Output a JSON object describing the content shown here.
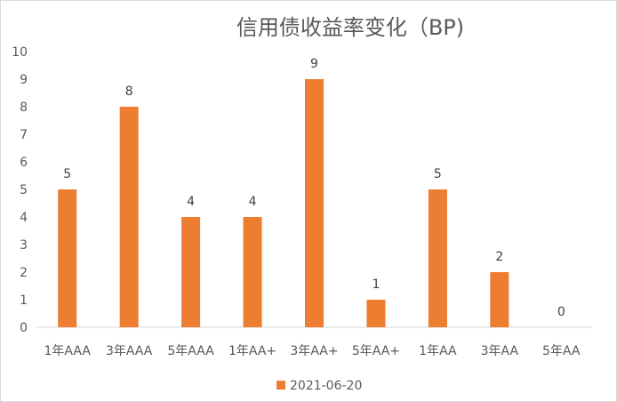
{
  "chart_data": {
    "type": "bar",
    "title": "信用债收益率变化（BP)",
    "xlabel": "",
    "ylabel": "",
    "ylim": [
      0,
      10
    ],
    "yticks": [
      0,
      1,
      2,
      3,
      4,
      5,
      6,
      7,
      8,
      9,
      10
    ],
    "categories": [
      "1年AAA",
      "3年AAA",
      "5年AAA",
      "1年AA+",
      "3年AA+",
      "5年AA+",
      "1年AA",
      "3年AA",
      "5年AA"
    ],
    "series": [
      {
        "name": "2021-06-20",
        "values": [
          5,
          8,
          4,
          4,
          9,
          1,
          5,
          2,
          0
        ],
        "color": "#ED7D31"
      }
    ],
    "data_labels": true,
    "grid": false,
    "legend_position": "bottom"
  }
}
